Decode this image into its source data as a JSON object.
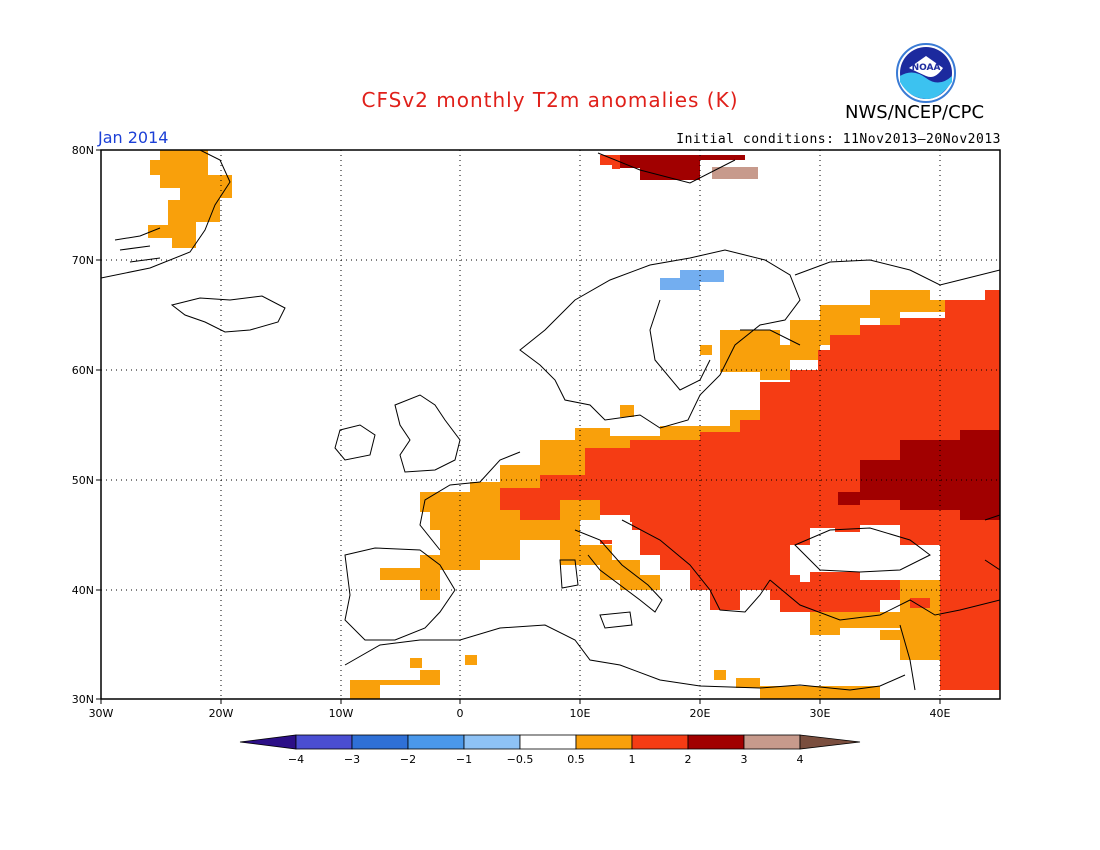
{
  "title": "CFSv2 monthly T2m anomalies (K)",
  "agency": "NWS/NCEP/CPC",
  "logo_text": "NOAA",
  "period": "Jan 2014",
  "initial_conditions": "Initial conditions: 11Nov2013–20Nov2013",
  "map": {
    "lon_range": [
      -30,
      45
    ],
    "lat_range": [
      30,
      80
    ],
    "lat_ticks": [
      "80N",
      "70N",
      "60N",
      "50N",
      "40N",
      "30N"
    ],
    "lon_ticks": [
      "30W",
      "20W",
      "10W",
      "0",
      "10E",
      "20E",
      "30E",
      "40E"
    ],
    "gridlines": "dotted",
    "colors": {
      "cat_05_1": "#f9a00b",
      "cat_1_2": "#f53c14",
      "cat_2_3": "#a10000",
      "cat_3_4": "#c79a8c",
      "cat_m1_m05": "#73aef0"
    },
    "anomaly_regions": [
      {
        "name": "Greenland east coast",
        "category": "0.5 to 1"
      },
      {
        "name": "Svalbard",
        "category": "1 to 4"
      },
      {
        "name": "Northern Scandinavia",
        "category": "-1 to -0.5"
      },
      {
        "name": "Western and Southern Europe",
        "category": "0.5 to 1"
      },
      {
        "name": "Central and Eastern Europe",
        "category": "1 to 2"
      },
      {
        "name": "Ukraine / Southern Russia",
        "category": "2 to 3"
      },
      {
        "name": "Anatolia",
        "category": "1 to 2"
      }
    ]
  },
  "legend": {
    "labels": [
      "−4",
      "−3",
      "−2",
      "−1",
      "−0.5",
      "0.5",
      "1",
      "2",
      "3",
      "4"
    ],
    "colors": [
      "#3a1cad",
      "#4a4ed2",
      "#2f70d6",
      "#4a98ea",
      "#8ec2f5",
      "#ffffff",
      "#f9a00b",
      "#f53c14",
      "#a10000",
      "#c79a8c",
      "#7a4e3e",
      "#2c0f87"
    ]
  }
}
